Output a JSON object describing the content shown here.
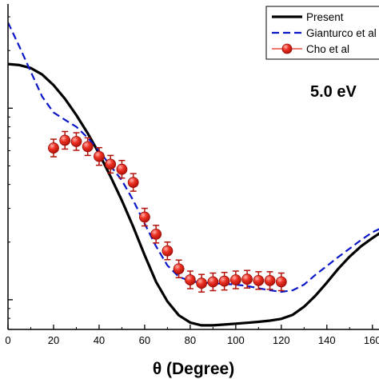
{
  "chart_data": {
    "type": "line",
    "title": "",
    "annotation": "5.0 eV",
    "xlabel": "θ (Degree)",
    "ylabel": "",
    "xlim": [
      0,
      165
    ],
    "ylog": true,
    "ylim": [
      0.07,
      3.5
    ],
    "x_ticks": [
      0,
      20,
      40,
      60,
      80,
      100,
      120,
      140,
      160
    ],
    "x_tick_labels": [
      "0",
      "20",
      "40",
      "60",
      "80",
      "100",
      "120",
      "140",
      "160"
    ],
    "grid": false,
    "legend_position": "top-right",
    "series": [
      {
        "name": "Present",
        "style": "solid",
        "color": "#000000",
        "x": [
          0,
          5,
          10,
          15,
          20,
          25,
          30,
          35,
          40,
          45,
          50,
          55,
          60,
          65,
          70,
          75,
          80,
          85,
          90,
          95,
          100,
          105,
          110,
          115,
          120,
          125,
          130,
          135,
          140,
          145,
          150,
          155,
          160,
          165
        ],
        "y": [
          1.7,
          1.68,
          1.62,
          1.5,
          1.32,
          1.12,
          0.92,
          0.74,
          0.58,
          0.44,
          0.33,
          0.24,
          0.171,
          0.124,
          0.098,
          0.083,
          0.076,
          0.0735,
          0.0735,
          0.0742,
          0.075,
          0.0758,
          0.0767,
          0.0778,
          0.0795,
          0.0835,
          0.092,
          0.105,
          0.123,
          0.145,
          0.168,
          0.19,
          0.21,
          0.23
        ]
      },
      {
        "name": "Gianturco et al",
        "style": "dashed",
        "color": "#0a16c8",
        "x": [
          0,
          5,
          10,
          15,
          20,
          25,
          30,
          35,
          40,
          45,
          50,
          55,
          60,
          65,
          70,
          75,
          80,
          85,
          90,
          95,
          100,
          105,
          110,
          115,
          120,
          125,
          130,
          135,
          140,
          145,
          150,
          155,
          160,
          165
        ],
        "y": [
          2.8,
          2.1,
          1.55,
          1.15,
          0.95,
          0.87,
          0.8,
          0.7,
          0.6,
          0.5,
          0.42,
          0.33,
          0.25,
          0.19,
          0.151,
          0.132,
          0.125,
          0.123,
          0.122,
          0.121,
          0.12,
          0.118,
          0.115,
          0.112,
          0.11,
          0.112,
          0.12,
          0.135,
          0.15,
          0.167,
          0.185,
          0.205,
          0.225,
          0.24
        ]
      },
      {
        "name": "Cho et al",
        "style": "markers",
        "color": "#e8241a",
        "x": [
          20,
          25,
          30,
          35,
          40,
          45,
          50,
          55,
          60,
          65,
          70,
          75,
          80,
          85,
          90,
          95,
          100,
          105,
          110,
          115,
          120
        ],
        "y": [
          0.62,
          0.68,
          0.67,
          0.63,
          0.56,
          0.51,
          0.48,
          0.41,
          0.27,
          0.22,
          0.18,
          0.145,
          0.127,
          0.122,
          0.124,
          0.125,
          0.127,
          0.128,
          0.126,
          0.126,
          0.124
        ]
      }
    ]
  }
}
